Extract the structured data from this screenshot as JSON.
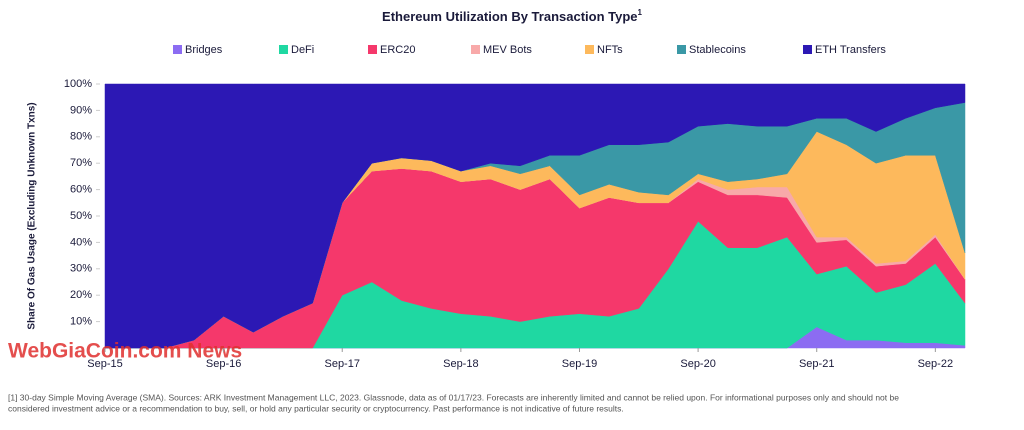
{
  "chart_data": {
    "type": "stacked_area",
    "title": "Ethereum Utilization By Transaction Type",
    "title_note": "1",
    "y_label": "Share Of Gas Usage (Excluding Unknown Txns)",
    "x": [
      "Sep-15",
      "Dec-15",
      "Mar-16",
      "Jun-16",
      "Sep-16",
      "Dec-16",
      "Mar-17",
      "Jun-17",
      "Sep-17",
      "Dec-17",
      "Mar-18",
      "Jun-18",
      "Sep-18",
      "Dec-18",
      "Mar-19",
      "Jun-19",
      "Sep-19",
      "Dec-19",
      "Mar-20",
      "Jun-20",
      "Sep-20",
      "Dec-20",
      "Mar-21",
      "Jun-21",
      "Sep-21",
      "Dec-21",
      "Mar-22",
      "Jun-22",
      "Sep-22",
      "Dec-22"
    ],
    "xticks": [
      "Sep-15",
      "Sep-16",
      "Sep-17",
      "Sep-18",
      "Sep-19",
      "Sep-20",
      "Sep-21",
      "Sep-22"
    ],
    "ylim": [
      0,
      100
    ],
    "yticks": [
      {
        "value": 10,
        "label": "10%"
      },
      {
        "value": 20,
        "label": "20%"
      },
      {
        "value": 30,
        "label": "30%"
      },
      {
        "value": 40,
        "label": "40%"
      },
      {
        "value": 50,
        "label": "50%"
      },
      {
        "value": 60,
        "label": "60%"
      },
      {
        "value": 70,
        "label": "70%"
      },
      {
        "value": 80,
        "label": "80%"
      },
      {
        "value": 90,
        "label": "90%"
      },
      {
        "value": 100,
        "label": "100%"
      }
    ],
    "series": [
      {
        "name": "Bridges",
        "color": "#8c6cf2",
        "values": [
          0,
          0,
          0,
          0,
          0,
          0,
          0,
          0,
          0,
          0,
          0,
          0,
          0,
          0,
          0,
          0,
          0,
          0,
          0,
          0,
          0,
          0,
          0,
          0,
          8,
          3,
          3,
          2,
          2,
          1
        ]
      },
      {
        "name": "DeFi",
        "color": "#1fd8a2",
        "values": [
          0,
          0,
          0,
          0,
          0,
          0,
          0,
          0,
          20,
          25,
          18,
          15,
          13,
          12,
          10,
          12,
          13,
          12,
          15,
          30,
          48,
          38,
          38,
          42,
          20,
          28,
          18,
          22,
          30,
          16
        ]
      },
      {
        "name": "ERC20",
        "color": "#f5386b",
        "values": [
          0,
          0,
          0,
          3,
          12,
          6,
          12,
          17,
          35,
          42,
          50,
          52,
          50,
          52,
          50,
          52,
          40,
          45,
          40,
          25,
          15,
          20,
          20,
          15,
          12,
          10,
          10,
          8,
          10,
          9
        ]
      },
      {
        "name": "MEV Bots",
        "color": "#f8a9a9",
        "values": [
          0,
          0,
          0,
          0,
          0,
          0,
          0,
          0,
          0,
          0,
          0,
          0,
          0,
          0,
          0,
          0,
          0,
          0,
          0,
          0,
          1,
          2,
          3,
          4,
          2,
          1,
          1,
          1,
          1,
          0
        ]
      },
      {
        "name": "NFTs",
        "color": "#fdb95c",
        "values": [
          0,
          0,
          0,
          0,
          0,
          0,
          0,
          0,
          0,
          3,
          4,
          4,
          4,
          5,
          6,
          5,
          5,
          5,
          4,
          3,
          2,
          3,
          3,
          5,
          40,
          35,
          38,
          40,
          30,
          10
        ]
      },
      {
        "name": "Stablecoins",
        "color": "#3a98a6",
        "values": [
          0,
          0,
          0,
          0,
          0,
          0,
          0,
          0,
          0,
          0,
          0,
          0,
          0,
          1,
          3,
          4,
          15,
          15,
          18,
          20,
          18,
          22,
          20,
          18,
          5,
          10,
          12,
          14,
          18,
          57
        ]
      },
      {
        "name": "ETH Transfers",
        "color": "#2c18b4",
        "values": [
          100,
          100,
          100,
          97,
          88,
          94,
          88,
          83,
          45,
          30,
          28,
          29,
          33,
          30,
          31,
          27,
          27,
          23,
          23,
          22,
          16,
          15,
          16,
          16,
          13,
          13,
          18,
          13,
          9,
          7
        ]
      }
    ],
    "watermark": "WebGiaCoin.com News",
    "footnote": [
      "[1] 30-day Simple Moving Average (SMA). Sources: ARK Investment Management LLC, 2023. Glassnode, data as of 01/17/23. Forecasts are inherently limited and cannot be relied upon. For informational purposes only and should not be",
      "considered investment advice or a recommendation to buy, sell, or hold any particular security or cryptocurrency. Past performance is not indicative of future results."
    ]
  }
}
